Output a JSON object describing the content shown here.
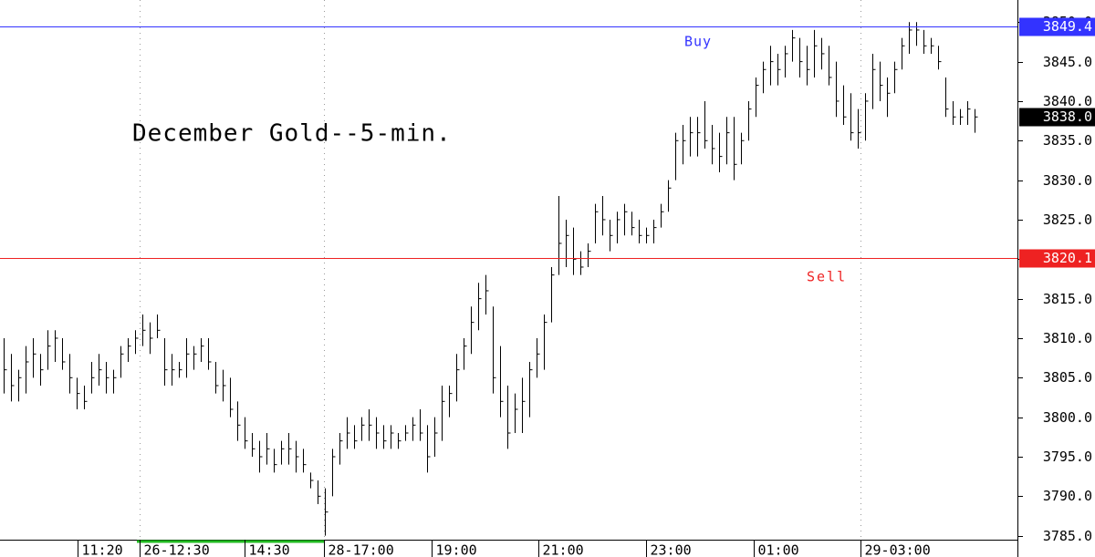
{
  "chart_data": {
    "type": "ohlc",
    "title": "December Gold--5-min.",
    "color": "#000000",
    "high": [
      3810,
      3808,
      3806,
      3809,
      3810,
      3808,
      3811,
      3811,
      3810,
      3808,
      3805,
      3804,
      3807,
      3808,
      3807,
      3806,
      3809,
      3810,
      3811,
      3813,
      3812,
      3813,
      3810,
      3808,
      3807,
      3810,
      3809,
      3810,
      3810,
      3807,
      3806,
      3805,
      3802,
      3800,
      3798,
      3797,
      3798,
      3796,
      3797,
      3798,
      3797,
      3796,
      3793,
      3792,
      3791,
      3796,
      3798,
      3800,
      3799,
      3800,
      3801,
      3800,
      3799,
      3799,
      3798,
      3799,
      3800,
      3801,
      3799,
      3800,
      3804,
      3804,
      3808,
      3810,
      3814,
      3817,
      3818,
      3814,
      3809,
      3804,
      3803,
      3805,
      3807,
      3810,
      3813,
      3819,
      3828,
      3825,
      3824,
      3821,
      3822,
      3827,
      3828,
      3825,
      3826,
      3827,
      3826,
      3825,
      3824,
      3825,
      3827,
      3830,
      3836,
      3837,
      3838,
      3838,
      3840,
      3837,
      3836,
      3838,
      3838,
      3836,
      3840,
      3843,
      3845,
      3847,
      3846,
      3847,
      3849,
      3848,
      3847,
      3849,
      3848,
      3847,
      3845,
      3842,
      3841,
      3839,
      3841,
      3846,
      3845,
      3843,
      3845,
      3848,
      3850,
      3850,
      3849,
      3848,
      3847,
      3843,
      3840,
      3839,
      3840,
      3839
    ],
    "low": [
      3803,
      3802,
      3802,
      3803,
      3805,
      3804,
      3806,
      3807,
      3806,
      3803,
      3801,
      3801,
      3803,
      3804,
      3803,
      3803,
      3805,
      3807,
      3808,
      3809,
      3808,
      3810,
      3804,
      3804,
      3805,
      3805,
      3806,
      3807,
      3806,
      3803,
      3802,
      3800,
      3797,
      3796,
      3795,
      3793,
      3794,
      3793,
      3794,
      3794,
      3793,
      3793,
      3791,
      3789,
      3785,
      3790,
      3794,
      3796,
      3796,
      3797,
      3797,
      3796,
      3796,
      3796,
      3796,
      3797,
      3797,
      3797,
      3793,
      3795,
      3797,
      3800,
      3802,
      3806,
      3808,
      3811,
      3813,
      3803,
      3800,
      3796,
      3798,
      3798,
      3800,
      3805,
      3806,
      3812,
      3818,
      3819,
      3818,
      3818,
      3819,
      3822,
      3823,
      3821,
      3822,
      3823,
      3823,
      3822,
      3822,
      3822,
      3824,
      3826,
      3830,
      3832,
      3833,
      3833,
      3834,
      3832,
      3831,
      3832,
      3830,
      3832,
      3835,
      3838,
      3841,
      3842,
      3842,
      3843,
      3845,
      3843,
      3842,
      3843,
      3844,
      3842,
      3838,
      3837,
      3835,
      3834,
      3835,
      3839,
      3840,
      3838,
      3841,
      3844,
      3846,
      3847,
      3846,
      3846,
      3844,
      3838,
      3837,
      3837,
      3837,
      3836
    ],
    "close": [
      3806,
      3804,
      3805,
      3807,
      3808,
      3806,
      3809,
      3810,
      3807,
      3805,
      3803,
      3802,
      3805,
      3806,
      3805,
      3805,
      3808,
      3809,
      3810,
      3811,
      3810,
      3811,
      3806,
      3806,
      3806,
      3808,
      3808,
      3809,
      3807,
      3804,
      3804,
      3801,
      3799,
      3797,
      3796,
      3795,
      3796,
      3794,
      3796,
      3796,
      3795,
      3794,
      3792,
      3790,
      3788,
      3795,
      3797,
      3798,
      3797,
      3799,
      3799,
      3798,
      3797,
      3798,
      3797,
      3798,
      3799,
      3798,
      3795,
      3798,
      3802,
      3803,
      3806,
      3809,
      3812,
      3815,
      3816,
      3805,
      3802,
      3798,
      3801,
      3802,
      3806,
      3808,
      3812,
      3818,
      3822,
      3823,
      3820,
      3819,
      3821,
      3826,
      3825,
      3823,
      3825,
      3826,
      3824,
      3823,
      3823,
      3824,
      3826,
      3829,
      3835,
      3835,
      3836,
      3836,
      3835,
      3834,
      3833,
      3836,
      3832,
      3835,
      3839,
      3842,
      3844,
      3845,
      3844,
      3846,
      3848,
      3845,
      3844,
      3847,
      3846,
      3843,
      3840,
      3838,
      3836,
      3836,
      3840,
      3844,
      3842,
      3841,
      3844,
      3847,
      3849,
      3849,
      3847,
      3847,
      3845,
      3839,
      3838,
      3838,
      3839,
      3838
    ],
    "xlim": [
      -0.5,
      138.875
    ],
    "xticks": [
      {
        "value": 10.1,
        "label": "11:20"
      },
      {
        "value": 18.6,
        "label": "26-12:30"
      },
      {
        "value": 33,
        "label": "14:30"
      },
      {
        "value": 43.9,
        "label": "28-17:00"
      },
      {
        "value": 58.6,
        "label": "19:00"
      },
      {
        "value": 73.25,
        "label": "21:00"
      },
      {
        "value": 88,
        "label": "23:00"
      },
      {
        "value": 102.75,
        "label": "01:00"
      },
      {
        "value": 117.4,
        "label": "29-03:00"
      }
    ],
    "ylim": [
      3784.5,
      3852.8
    ],
    "yticks": [
      {
        "value": 3785,
        "label": "3785.0"
      },
      {
        "value": 3790,
        "label": "3790.0"
      },
      {
        "value": 3795,
        "label": "3795.0"
      },
      {
        "value": 3800,
        "label": "3800.0"
      },
      {
        "value": 3805,
        "label": "3805.0"
      },
      {
        "value": 3810,
        "label": "3810.0"
      },
      {
        "value": 3815,
        "label": "3815.0"
      },
      {
        "value": 3820,
        "label": "3820.0"
      },
      {
        "value": 3825,
        "label": "3825.0"
      },
      {
        "value": 3830,
        "label": "3830.0"
      },
      {
        "value": 3835,
        "label": "3835.0"
      },
      {
        "value": 3840,
        "label": "3840.0"
      },
      {
        "value": 3845,
        "label": "3845.0"
      },
      {
        "value": 3850,
        "label": "3850.0"
      }
    ],
    "hlines": [
      {
        "value": 3849.4,
        "text": "Buy",
        "color": "#3333ff"
      },
      {
        "value": 3820.1,
        "text": "Sell",
        "color": "#ee2222"
      }
    ],
    "last": {
      "value": 3838,
      "label": "3838.0"
    }
  }
}
